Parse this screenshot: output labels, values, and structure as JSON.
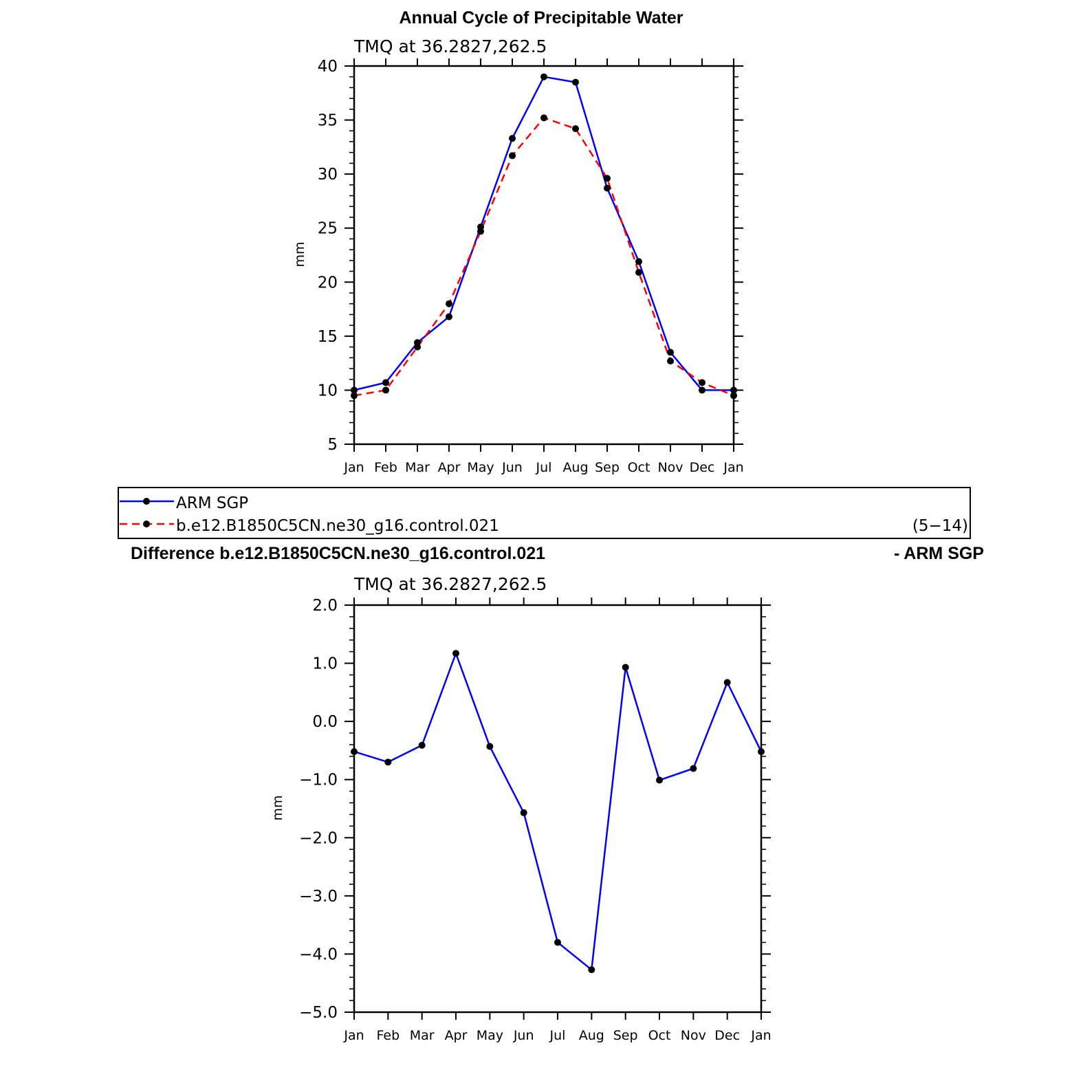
{
  "chart_data": [
    {
      "type": "line",
      "title": "Annual Cycle of Precipitable Water",
      "subtitle": "TMQ at 36.2827,262.5",
      "xlabel": "",
      "ylabel": "mm",
      "categories": [
        "Jan",
        "Feb",
        "Mar",
        "Apr",
        "May",
        "Jun",
        "Jul",
        "Aug",
        "Sep",
        "Oct",
        "Nov",
        "Dec",
        "Jan"
      ],
      "ylim": [
        5,
        40
      ],
      "yticks": [
        "5",
        "10",
        "15",
        "20",
        "25",
        "30",
        "35",
        "40"
      ],
      "grid": false,
      "series": [
        {
          "name": "ARM SGP",
          "color": "#0000ff",
          "dash": "solid",
          "values": [
            10.0,
            10.7,
            14.4,
            16.8,
            25.1,
            33.3,
            39.0,
            38.5,
            28.7,
            21.9,
            13.5,
            10.0,
            10.0
          ]
        },
        {
          "name": "b.e12.B1850C5CN.ne30_g16.control.021",
          "color": "#ff0000",
          "dash": "dashed",
          "values": [
            9.5,
            10.0,
            14.0,
            18.0,
            24.7,
            31.7,
            35.2,
            34.2,
            29.6,
            20.9,
            12.7,
            10.7,
            9.5
          ]
        }
      ],
      "legend": {
        "position": "bottom",
        "entries": [
          "ARM SGP",
          "b.e12.B1850C5CN.ne30_g16.control.021"
        ],
        "annotation": "(5−14)"
      }
    },
    {
      "type": "line",
      "title": "Difference b.e12.B1850C5CN.ne30_g16.control.021",
      "title_right": "- ARM SGP",
      "subtitle": "TMQ at 36.2827,262.5",
      "xlabel": "",
      "ylabel": "mm",
      "categories": [
        "Jan",
        "Feb",
        "Mar",
        "Apr",
        "May",
        "Jun",
        "Jul",
        "Aug",
        "Sep",
        "Oct",
        "Nov",
        "Dec",
        "Jan"
      ],
      "ylim": [
        -5.0,
        2.0
      ],
      "yticks": [
        "−5.0",
        "−4.0",
        "−3.0",
        "−2.0",
        "−1.0",
        "0.0",
        "1.0",
        "2.0"
      ],
      "grid": false,
      "series": [
        {
          "color": "#0000ff",
          "dash": "solid",
          "values": [
            -0.52,
            -0.7,
            -0.41,
            1.17,
            -0.43,
            -1.57,
            -3.8,
            -4.27,
            0.93,
            -1.01,
            -0.81,
            0.67,
            -0.52
          ]
        }
      ]
    }
  ]
}
